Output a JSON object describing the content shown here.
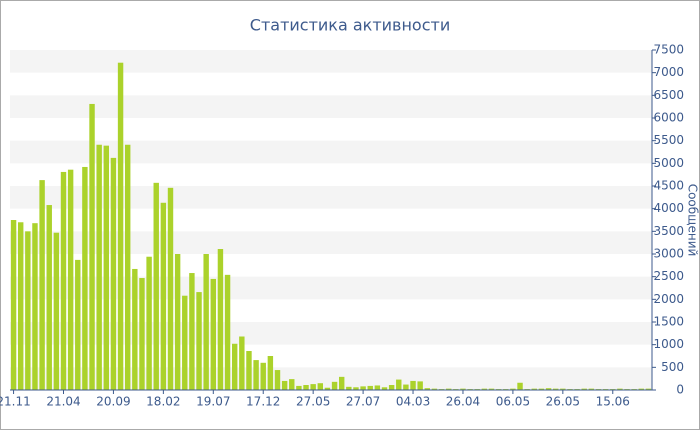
{
  "chart_data": {
    "type": "bar",
    "title": "Статистика активности",
    "y_axis_label": "Сообщений",
    "categories": [
      "21.11",
      null,
      null,
      null,
      null,
      null,
      null,
      "21.04",
      null,
      null,
      null,
      null,
      null,
      null,
      "20.09",
      null,
      null,
      null,
      null,
      null,
      null,
      "18.02",
      null,
      null,
      null,
      null,
      null,
      null,
      "19.07",
      null,
      null,
      null,
      null,
      null,
      null,
      "17.12",
      null,
      null,
      null,
      null,
      null,
      null,
      "27.05",
      null,
      null,
      null,
      null,
      null,
      null,
      "27.07",
      null,
      null,
      null,
      null,
      null,
      null,
      "04.03",
      null,
      null,
      null,
      null,
      null,
      null,
      "26.04",
      null,
      null,
      null,
      null,
      null,
      null,
      "06.05",
      null,
      null,
      null,
      null,
      null,
      null,
      "26.05",
      null,
      null,
      null,
      null,
      null,
      null,
      "15.06",
      null,
      null,
      null,
      null,
      null
    ],
    "values": [
      3750,
      3700,
      3500,
      3680,
      4630,
      4080,
      3470,
      4810,
      4860,
      2870,
      4920,
      6310,
      5410,
      5390,
      5120,
      7220,
      5410,
      2670,
      2470,
      2940,
      4570,
      4130,
      4460,
      3000,
      2080,
      2580,
      2160,
      3000,
      2450,
      3110,
      2540,
      1020,
      1180,
      860,
      660,
      600,
      750,
      440,
      200,
      240,
      90,
      110,
      130,
      150,
      50,
      180,
      290,
      70,
      60,
      80,
      90,
      100,
      60,
      110,
      230,
      120,
      200,
      190,
      40,
      30,
      20,
      30,
      20,
      30,
      20,
      20,
      30,
      30,
      20,
      20,
      30,
      160,
      20,
      30,
      30,
      40,
      30,
      30,
      20,
      20,
      30,
      30,
      20,
      20,
      20,
      30,
      20,
      20,
      30,
      30
    ],
    "color": "#abd22b",
    "ylim": [
      0,
      7500
    ],
    "yticks": [
      0,
      500,
      1000,
      1500,
      2000,
      2500,
      3000,
      3500,
      4000,
      4500,
      5000,
      5500,
      6000,
      6500,
      7000,
      7500
    ],
    "grid": "bands"
  }
}
